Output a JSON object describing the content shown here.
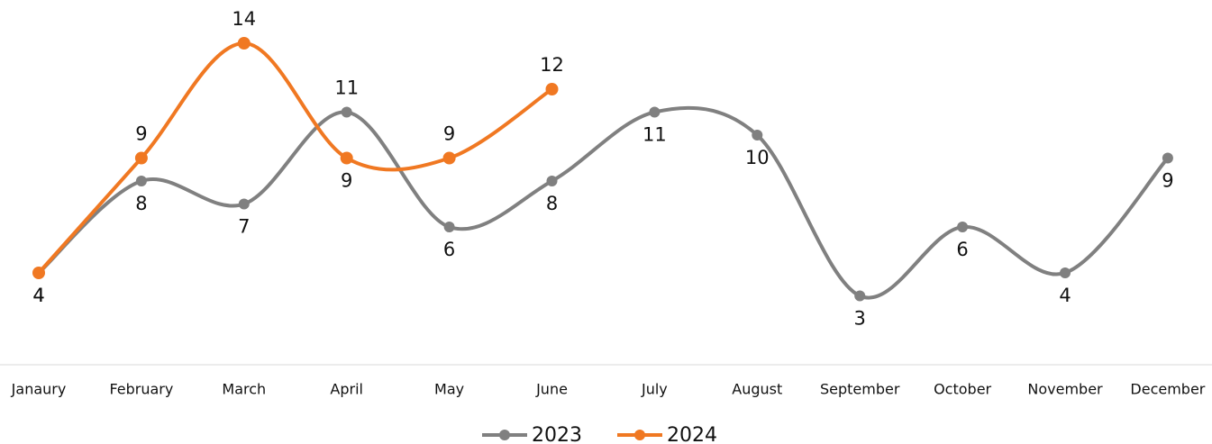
{
  "chart_data": {
    "type": "line",
    "categories": [
      "Janaury",
      "February",
      "March",
      "April",
      "May",
      "June",
      "July",
      "August",
      "September",
      "October",
      "November",
      "December"
    ],
    "series": [
      {
        "name": "2023",
        "color": "#808080",
        "values": [
          4,
          8,
          7,
          11,
          6,
          8,
          11,
          10,
          3,
          6,
          4,
          9
        ]
      },
      {
        "name": "2024",
        "color": "#f07822",
        "values": [
          4,
          9,
          14,
          9,
          9,
          12,
          null,
          null,
          null,
          null,
          null,
          null
        ]
      }
    ],
    "ylim": [
      0,
      15
    ],
    "grid": false,
    "smooth": true,
    "data_labels": true,
    "legend": "bottom"
  }
}
